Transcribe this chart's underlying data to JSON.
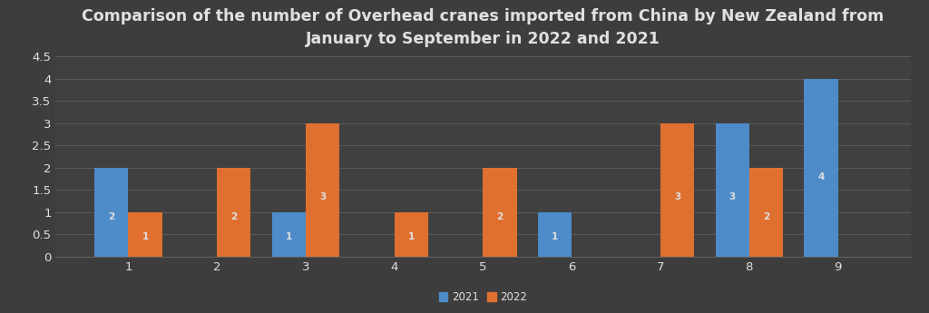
{
  "title": "Comparison of the number of Overhead cranes imported from China by New Zealand from\nJanuary to September in 2022 and 2021",
  "months": [
    1,
    2,
    3,
    4,
    5,
    6,
    7,
    8,
    9
  ],
  "values_2021": [
    2,
    0,
    1,
    0,
    0,
    1,
    0,
    3,
    4
  ],
  "values_2022": [
    1,
    2,
    3,
    1,
    2,
    0,
    3,
    2,
    0
  ],
  "color_2021": "#4d8bc9",
  "color_2022": "#E07030",
  "background_color": "#3d3d3d",
  "axes_background": "#404040",
  "grid_color": "#606060",
  "text_color": "#e0e0e0",
  "label_2021": "2021",
  "label_2022": "2022",
  "bar_width": 0.38,
  "ylim": [
    0,
    4.5
  ],
  "yticks": [
    0,
    0.5,
    1,
    1.5,
    2,
    2.5,
    3,
    3.5,
    4,
    4.5
  ],
  "title_fontsize": 12.5,
  "tick_fontsize": 9.5,
  "label_fontsize": 8.5,
  "value_fontsize": 7.5
}
